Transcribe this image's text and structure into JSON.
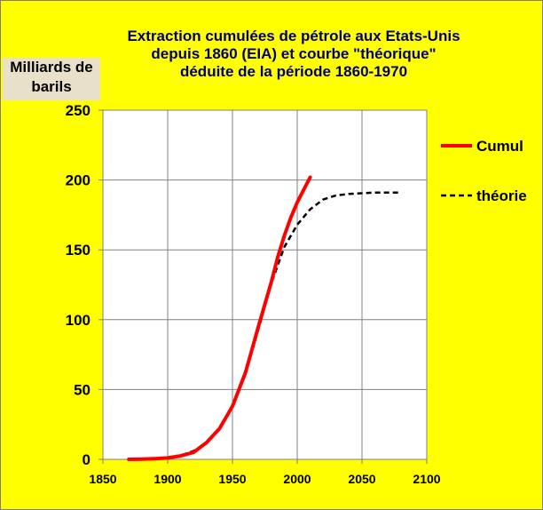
{
  "chart_data": {
    "type": "line",
    "title_lines": [
      "Extraction cumulées de pétrole aux Etats-Unis",
      "depuis 1860 (EIA) et courbe \"théorique\"",
      "déduite de la période  1860-1970"
    ],
    "ylabel_lines": [
      "Milliards de",
      "barils"
    ],
    "xlabel": "",
    "xlim": [
      1850,
      2100
    ],
    "ylim": [
      0,
      250
    ],
    "x_ticks": [
      "1850",
      "1900",
      "1950",
      "2000",
      "2050",
      "2100"
    ],
    "y_ticks": [
      "0",
      "50",
      "100",
      "150",
      "200",
      "250"
    ],
    "grid": true,
    "legend_position": "right",
    "series": [
      {
        "name": "Cumul",
        "color": "#ff0000",
        "style": "solid",
        "points": [
          [
            1870,
            0
          ],
          [
            1880,
            0.2
          ],
          [
            1890,
            0.5
          ],
          [
            1900,
            1
          ],
          [
            1910,
            2.5
          ],
          [
            1920,
            5
          ],
          [
            1930,
            12
          ],
          [
            1940,
            22
          ],
          [
            1950,
            38
          ],
          [
            1960,
            62
          ],
          [
            1970,
            95
          ],
          [
            1980,
            127
          ],
          [
            1985,
            145
          ],
          [
            1990,
            160
          ],
          [
            1995,
            173
          ],
          [
            2000,
            184
          ],
          [
            2005,
            193
          ],
          [
            2010,
            202
          ]
        ]
      },
      {
        "name": "théorie",
        "color": "#000000",
        "style": "dashed",
        "points": [
          [
            1870,
            0
          ],
          [
            1880,
            0.2
          ],
          [
            1890,
            0.6
          ],
          [
            1900,
            1.3
          ],
          [
            1910,
            2.8
          ],
          [
            1920,
            6
          ],
          [
            1930,
            12
          ],
          [
            1940,
            22
          ],
          [
            1950,
            38
          ],
          [
            1960,
            61
          ],
          [
            1970,
            93
          ],
          [
            1980,
            126
          ],
          [
            1990,
            152
          ],
          [
            2000,
            168
          ],
          [
            2010,
            179
          ],
          [
            2020,
            186
          ],
          [
            2030,
            189
          ],
          [
            2040,
            190
          ],
          [
            2050,
            190.5
          ],
          [
            2060,
            191
          ],
          [
            2070,
            191
          ],
          [
            2080,
            191
          ]
        ]
      }
    ]
  }
}
